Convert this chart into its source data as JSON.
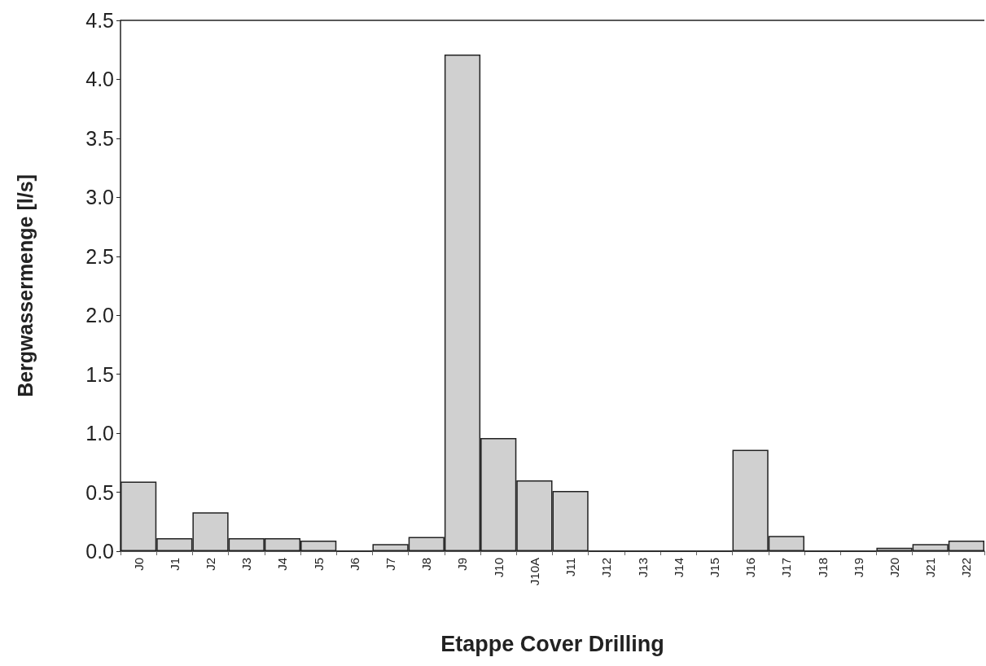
{
  "chart_data": {
    "type": "bar",
    "xlabel": "Etappe Cover Drilling",
    "ylabel": "Bergwassermenge [l/s]",
    "categories": [
      "J0",
      "J1",
      "J2",
      "J3",
      "J4",
      "J5",
      "J6",
      "J7",
      "J8",
      "J9",
      "J10",
      "J10A",
      "J11",
      "J12",
      "J13",
      "J14",
      "J15",
      "J16",
      "J17",
      "J18",
      "J19",
      "J20",
      "J21",
      "J22"
    ],
    "values": [
      0.59,
      0.11,
      0.33,
      0.11,
      0.11,
      0.09,
      0,
      0.06,
      0.12,
      4.21,
      0.96,
      0.6,
      0.51,
      0,
      0,
      0,
      0,
      0.86,
      0.13,
      0,
      0,
      0.03,
      0.06,
      0.09
    ],
    "color": "#d0d0d0",
    "ylim": [
      0,
      4.5
    ],
    "yticks": [
      {
        "value": 0,
        "label": "0.0"
      },
      0.5,
      {
        "value": 1,
        "label": "1.0"
      },
      1.5,
      {
        "value": 2,
        "label": "2.0"
      },
      2.5,
      {
        "value": 3,
        "label": "3.0"
      },
      3.5,
      {
        "value": 4,
        "label": "4.0"
      },
      4.5
    ]
  }
}
